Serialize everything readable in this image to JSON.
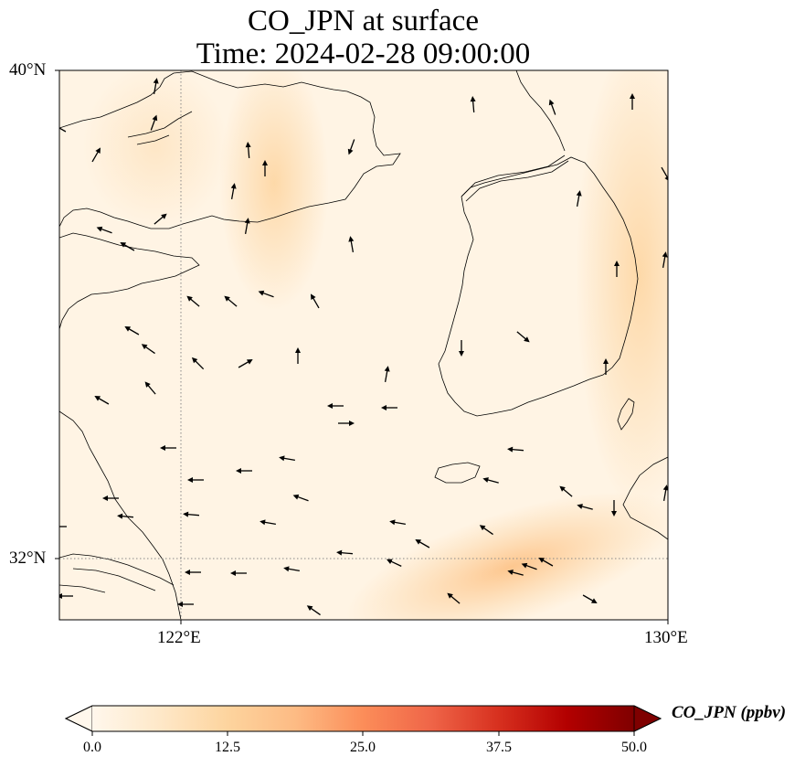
{
  "title": {
    "line1": "CO_JPN at surface",
    "line2": "Time: 2024-02-28 09:00:00"
  },
  "axes": {
    "lat_labels": [
      "40°N",
      "32°N"
    ],
    "lon_labels": [
      "122°E",
      "130°E"
    ]
  },
  "colorbar": {
    "label": "CO_JPN (ppbv)",
    "colormap": "OrRd",
    "ticks": [
      "0.0",
      "12.5",
      "25.0",
      "37.5",
      "50.0"
    ],
    "range": [
      0,
      50
    ],
    "extend": "both"
  },
  "chart_data": {
    "type": "heatmap",
    "variable": "CO_JPN",
    "units": "ppbv",
    "level": "surface",
    "time": "2024-02-28 09:00:00",
    "lon_range": [
      120,
      130
    ],
    "lat_range": [
      31,
      40
    ],
    "gridlines": {
      "lon": [
        122,
        130
      ],
      "lat": [
        32,
        40
      ],
      "style": "dotted"
    },
    "value_range_shown": [
      0,
      12
    ],
    "overlays": [
      "coastlines",
      "wind-vectors"
    ]
  },
  "colors": {
    "background_field": "#fff5eb",
    "low": "#fff7ec",
    "mid": "#fdbb84",
    "high": "#7f0000",
    "coastline": "#000000",
    "vector": "#000000",
    "gridline": "#888888"
  }
}
